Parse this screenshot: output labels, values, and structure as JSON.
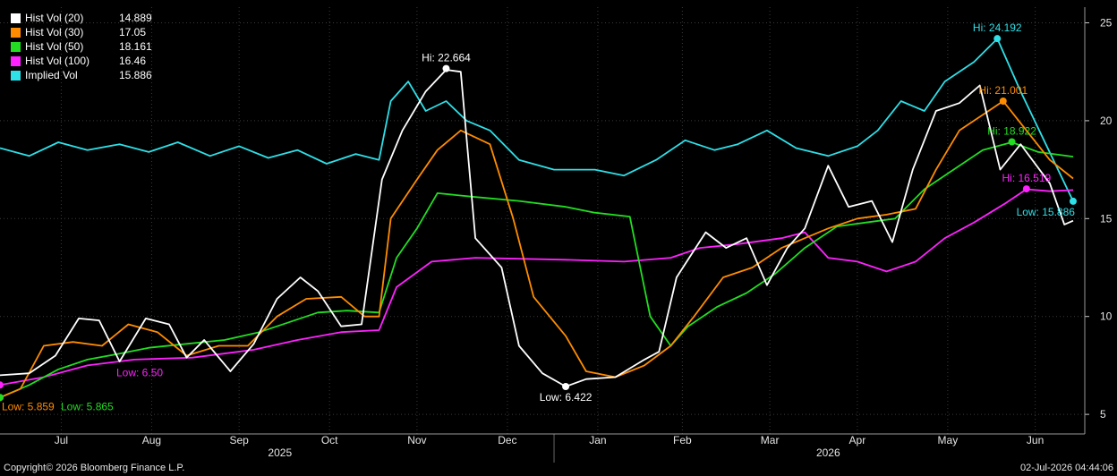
{
  "copyright": "Copyright© 2026 Bloomberg Finance L.P.",
  "timestamp": "02-Jul-2026 04:44:06",
  "chart_data": {
    "type": "line",
    "title": "",
    "xlabel": "",
    "ylabel": "",
    "x_range": [
      "2025-06-25",
      "2026-07-02"
    ],
    "ylim": [
      4,
      25.8
    ],
    "y_ticks": [
      5,
      10,
      15,
      20,
      25
    ],
    "grid": true,
    "y_axis_side": "right",
    "legend_position": "top-left",
    "month_labels": [
      {
        "label": "Jul",
        "date": "2025-07-16"
      },
      {
        "label": "Aug",
        "date": "2025-08-16"
      },
      {
        "label": "Sep",
        "date": "2025-09-15"
      },
      {
        "label": "Oct",
        "date": "2025-10-16"
      },
      {
        "label": "Nov",
        "date": "2025-11-15"
      },
      {
        "label": "Dec",
        "date": "2025-12-16"
      },
      {
        "label": "Jan",
        "date": "2026-01-16"
      },
      {
        "label": "Feb",
        "date": "2026-02-14"
      },
      {
        "label": "Mar",
        "date": "2026-03-16"
      },
      {
        "label": "Apr",
        "date": "2026-04-15"
      },
      {
        "label": "May",
        "date": "2026-05-16"
      },
      {
        "label": "Jun",
        "date": "2026-06-15"
      }
    ],
    "year_labels": [
      {
        "label": "2025",
        "date": "2025-09-29"
      },
      {
        "label": "2026",
        "date": "2026-04-05"
      }
    ],
    "year_dividers": [
      "2026-01-01"
    ],
    "series": [
      {
        "name": "Hist Vol (20)",
        "last": "14.889",
        "color": "#ffffff",
        "points": [
          [
            "2025-06-25",
            7.0
          ],
          [
            "2025-07-05",
            7.1
          ],
          [
            "2025-07-14",
            8.0
          ],
          [
            "2025-07-22",
            9.9
          ],
          [
            "2025-07-29",
            9.8
          ],
          [
            "2025-08-05",
            7.7
          ],
          [
            "2025-08-14",
            9.9
          ],
          [
            "2025-08-22",
            9.6
          ],
          [
            "2025-08-28",
            7.9
          ],
          [
            "2025-09-03",
            8.8
          ],
          [
            "2025-09-12",
            7.2
          ],
          [
            "2025-09-20",
            8.6
          ],
          [
            "2025-09-28",
            10.9
          ],
          [
            "2025-10-06",
            12.0
          ],
          [
            "2025-10-12",
            11.3
          ],
          [
            "2025-10-20",
            9.5
          ],
          [
            "2025-10-27",
            9.6
          ],
          [
            "2025-11-03",
            17.0
          ],
          [
            "2025-11-10",
            19.5
          ],
          [
            "2025-11-18",
            21.5
          ],
          [
            "2025-11-25",
            22.6
          ],
          [
            "2025-11-30",
            22.5
          ],
          [
            "2025-12-05",
            14.0
          ],
          [
            "2025-12-14",
            12.5
          ],
          [
            "2025-12-20",
            8.5
          ],
          [
            "2025-12-28",
            7.1
          ],
          [
            "2026-01-05",
            6.42
          ],
          [
            "2026-01-12",
            6.8
          ],
          [
            "2026-01-22",
            6.9
          ],
          [
            "2026-02-01",
            7.8
          ],
          [
            "2026-02-06",
            8.2
          ],
          [
            "2026-02-12",
            12.0
          ],
          [
            "2026-02-22",
            14.3
          ],
          [
            "2026-03-01",
            13.5
          ],
          [
            "2026-03-08",
            14.0
          ],
          [
            "2026-03-15",
            11.6
          ],
          [
            "2026-03-22",
            13.5
          ],
          [
            "2026-03-28",
            14.5
          ],
          [
            "2026-04-05",
            17.7
          ],
          [
            "2026-04-12",
            15.6
          ],
          [
            "2026-04-20",
            15.9
          ],
          [
            "2026-04-27",
            13.8
          ],
          [
            "2026-05-04",
            17.5
          ],
          [
            "2026-05-12",
            20.5
          ],
          [
            "2026-05-20",
            20.9
          ],
          [
            "2026-05-27",
            21.8
          ],
          [
            "2026-06-03",
            17.5
          ],
          [
            "2026-06-10",
            18.8
          ],
          [
            "2026-06-20",
            16.8
          ],
          [
            "2026-06-25",
            14.7
          ],
          [
            "2026-06-28",
            14.889
          ]
        ]
      },
      {
        "name": "Hist Vol (30)",
        "last": "17.05",
        "color": "#ff8c00",
        "points": [
          [
            "2025-06-25",
            5.859
          ],
          [
            "2025-07-02",
            6.3
          ],
          [
            "2025-07-10",
            8.5
          ],
          [
            "2025-07-20",
            8.7
          ],
          [
            "2025-07-30",
            8.5
          ],
          [
            "2025-08-08",
            9.6
          ],
          [
            "2025-08-18",
            9.2
          ],
          [
            "2025-08-28",
            8.0
          ],
          [
            "2025-09-08",
            8.5
          ],
          [
            "2025-09-18",
            8.5
          ],
          [
            "2025-09-28",
            10.0
          ],
          [
            "2025-10-08",
            10.9
          ],
          [
            "2025-10-20",
            11.0
          ],
          [
            "2025-10-28",
            10.0
          ],
          [
            "2025-11-02",
            10.0
          ],
          [
            "2025-11-06",
            15.0
          ],
          [
            "2025-11-15",
            17.0
          ],
          [
            "2025-11-22",
            18.5
          ],
          [
            "2025-11-30",
            19.5
          ],
          [
            "2025-12-10",
            18.8
          ],
          [
            "2025-12-18",
            15.0
          ],
          [
            "2025-12-25",
            11.0
          ],
          [
            "2026-01-05",
            9.0
          ],
          [
            "2026-01-12",
            7.2
          ],
          [
            "2026-01-22",
            6.9
          ],
          [
            "2026-02-01",
            7.5
          ],
          [
            "2026-02-10",
            8.5
          ],
          [
            "2026-02-18",
            10.0
          ],
          [
            "2026-02-28",
            12.0
          ],
          [
            "2026-03-10",
            12.5
          ],
          [
            "2026-03-20",
            13.5
          ],
          [
            "2026-03-28",
            14.0
          ],
          [
            "2026-04-05",
            14.5
          ],
          [
            "2026-04-15",
            15.0
          ],
          [
            "2026-04-25",
            15.2
          ],
          [
            "2026-05-05",
            15.5
          ],
          [
            "2026-05-12",
            17.5
          ],
          [
            "2026-05-20",
            19.5
          ],
          [
            "2026-05-30",
            20.5
          ],
          [
            "2026-06-04",
            21.0
          ],
          [
            "2026-06-12",
            19.5
          ],
          [
            "2026-06-20",
            18.0
          ],
          [
            "2026-06-28",
            17.05
          ]
        ]
      },
      {
        "name": "Hist Vol (50)",
        "last": "18.161",
        "color": "#22dd22",
        "points": [
          [
            "2025-06-25",
            5.865
          ],
          [
            "2025-07-05",
            6.5
          ],
          [
            "2025-07-15",
            7.3
          ],
          [
            "2025-07-25",
            7.8
          ],
          [
            "2025-08-05",
            8.1
          ],
          [
            "2025-08-15",
            8.4
          ],
          [
            "2025-08-28",
            8.6
          ],
          [
            "2025-09-10",
            8.8
          ],
          [
            "2025-09-22",
            9.2
          ],
          [
            "2025-10-02",
            9.7
          ],
          [
            "2025-10-12",
            10.2
          ],
          [
            "2025-10-22",
            10.3
          ],
          [
            "2025-11-02",
            10.2
          ],
          [
            "2025-11-08",
            13.0
          ],
          [
            "2025-11-15",
            14.5
          ],
          [
            "2025-11-22",
            16.3
          ],
          [
            "2025-12-05",
            16.1
          ],
          [
            "2025-12-20",
            15.9
          ],
          [
            "2026-01-05",
            15.6
          ],
          [
            "2026-01-15",
            15.3
          ],
          [
            "2026-01-27",
            15.1
          ],
          [
            "2026-02-03",
            10.0
          ],
          [
            "2026-02-10",
            8.5
          ],
          [
            "2026-02-16",
            9.5
          ],
          [
            "2026-02-26",
            10.5
          ],
          [
            "2026-03-08",
            11.2
          ],
          [
            "2026-03-18",
            12.2
          ],
          [
            "2026-03-28",
            13.5
          ],
          [
            "2026-04-08",
            14.6
          ],
          [
            "2026-04-18",
            14.8
          ],
          [
            "2026-04-28",
            15.0
          ],
          [
            "2026-05-08",
            16.5
          ],
          [
            "2026-05-18",
            17.5
          ],
          [
            "2026-05-28",
            18.5
          ],
          [
            "2026-06-07",
            18.9
          ],
          [
            "2026-06-16",
            18.4
          ],
          [
            "2026-06-28",
            18.161
          ]
        ]
      },
      {
        "name": "Hist Vol (100)",
        "last": "16.46",
        "color": "#ff22ff",
        "points": [
          [
            "2025-06-25",
            6.5
          ],
          [
            "2025-07-10",
            6.9
          ],
          [
            "2025-07-25",
            7.5
          ],
          [
            "2025-08-10",
            7.8
          ],
          [
            "2025-08-30",
            7.9
          ],
          [
            "2025-09-20",
            8.3
          ],
          [
            "2025-10-05",
            8.8
          ],
          [
            "2025-10-20",
            9.2
          ],
          [
            "2025-11-02",
            9.3
          ],
          [
            "2025-11-08",
            11.5
          ],
          [
            "2025-11-20",
            12.8
          ],
          [
            "2025-12-05",
            13.0
          ],
          [
            "2026-01-05",
            12.9
          ],
          [
            "2026-01-25",
            12.8
          ],
          [
            "2026-02-10",
            13.0
          ],
          [
            "2026-02-20",
            13.5
          ],
          [
            "2026-03-05",
            13.7
          ],
          [
            "2026-03-20",
            14.0
          ],
          [
            "2026-03-28",
            14.3
          ],
          [
            "2026-04-05",
            13.0
          ],
          [
            "2026-04-15",
            12.8
          ],
          [
            "2026-04-25",
            12.3
          ],
          [
            "2026-05-05",
            12.8
          ],
          [
            "2026-05-15",
            14.0
          ],
          [
            "2026-05-25",
            14.8
          ],
          [
            "2026-06-05",
            15.8
          ],
          [
            "2026-06-12",
            16.5
          ],
          [
            "2026-06-20",
            16.4
          ],
          [
            "2026-06-28",
            16.46
          ]
        ]
      },
      {
        "name": "Implied Vol",
        "last": "15.886",
        "color": "#2ee0e8",
        "points": [
          [
            "2025-06-25",
            18.6
          ],
          [
            "2025-07-05",
            18.2
          ],
          [
            "2025-07-15",
            18.9
          ],
          [
            "2025-07-25",
            18.5
          ],
          [
            "2025-08-05",
            18.8
          ],
          [
            "2025-08-15",
            18.4
          ],
          [
            "2025-08-25",
            18.9
          ],
          [
            "2025-09-05",
            18.2
          ],
          [
            "2025-09-15",
            18.7
          ],
          [
            "2025-09-25",
            18.1
          ],
          [
            "2025-10-05",
            18.5
          ],
          [
            "2025-10-15",
            17.8
          ],
          [
            "2025-10-25",
            18.3
          ],
          [
            "2025-11-02",
            18.0
          ],
          [
            "2025-11-06",
            21.0
          ],
          [
            "2025-11-12",
            22.0
          ],
          [
            "2025-11-18",
            20.5
          ],
          [
            "2025-11-25",
            21.0
          ],
          [
            "2025-12-02",
            20.0
          ],
          [
            "2025-12-10",
            19.5
          ],
          [
            "2025-12-20",
            18.0
          ],
          [
            "2026-01-01",
            17.5
          ],
          [
            "2026-01-15",
            17.5
          ],
          [
            "2026-01-25",
            17.2
          ],
          [
            "2026-02-05",
            18.0
          ],
          [
            "2026-02-15",
            19.0
          ],
          [
            "2026-02-25",
            18.5
          ],
          [
            "2026-03-05",
            18.8
          ],
          [
            "2026-03-15",
            19.5
          ],
          [
            "2026-03-25",
            18.6
          ],
          [
            "2026-04-05",
            18.2
          ],
          [
            "2026-04-15",
            18.7
          ],
          [
            "2026-04-22",
            19.5
          ],
          [
            "2026-04-30",
            21.0
          ],
          [
            "2026-05-08",
            20.5
          ],
          [
            "2026-05-15",
            22.0
          ],
          [
            "2026-05-25",
            23.0
          ],
          [
            "2026-06-02",
            24.192
          ],
          [
            "2026-06-10",
            21.5
          ],
          [
            "2026-06-18",
            19.0
          ],
          [
            "2026-06-28",
            15.886
          ]
        ]
      }
    ],
    "annotations": [
      {
        "text": "Hi: 22.664",
        "date": "2025-11-25",
        "value": 22.664,
        "color": "#ffffff",
        "side": "above"
      },
      {
        "text": "Low: 6.422",
        "date": "2026-01-05",
        "value": 6.422,
        "color": "#ffffff",
        "side": "below"
      },
      {
        "text": "Low: 5.859",
        "date": "2025-06-25",
        "value": 5.859,
        "color": "#ff8c00",
        "side": "below"
      },
      {
        "text": "Low: 5.865",
        "date": "2025-06-25",
        "value": 5.865,
        "color": "#22dd22",
        "side": "below"
      },
      {
        "text": "Low: 6.50",
        "date": "2025-06-25",
        "value": 6.5,
        "color": "#ff22ff",
        "side": "right"
      },
      {
        "text": "Hi: 24.192",
        "date": "2026-06-02",
        "value": 24.192,
        "color": "#2ee0e8",
        "side": "above"
      },
      {
        "text": "Hi: 21.001",
        "date": "2026-06-04",
        "value": 21.001,
        "color": "#ff8c00",
        "side": "above"
      },
      {
        "text": "Hi: 18.922",
        "date": "2026-06-07",
        "value": 18.922,
        "color": "#22dd22",
        "side": "above"
      },
      {
        "text": "Hi: 16.519",
        "date": "2026-06-12",
        "value": 16.519,
        "color": "#ff22ff",
        "side": "above"
      },
      {
        "text": "Low: 15.886",
        "date": "2026-06-28",
        "value": 15.886,
        "color": "#2ee0e8",
        "side": "below"
      }
    ]
  }
}
